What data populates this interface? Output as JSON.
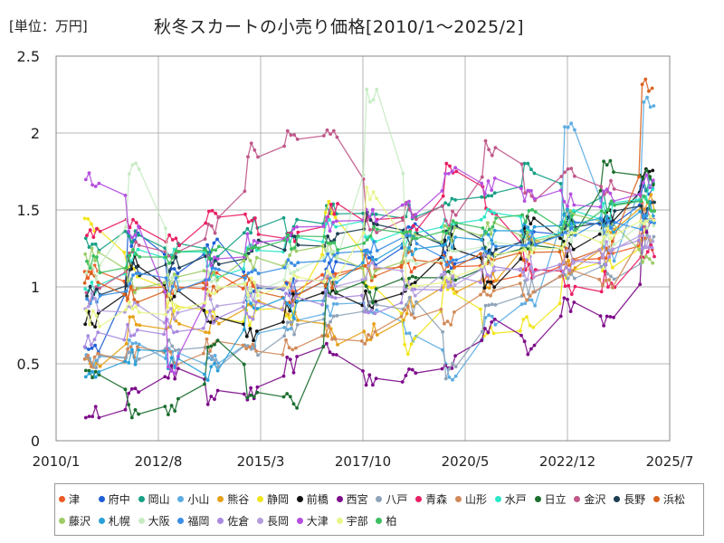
{
  "header": {
    "unit": "[単位：万円]",
    "title": "秋冬スカートの小売り価格[2010/1～2025/2]"
  },
  "chart_data": {
    "type": "line",
    "title": "秋冬スカートの小売り価格[2010/1～2025/2]",
    "unit_label": "[単位：万円]",
    "x_ticks": [
      "2010/1",
      "2012/8",
      "2015/3",
      "2017/10",
      "2020/5",
      "2022/12",
      "2025/7"
    ],
    "x_range": [
      "2010/1",
      "2025/7"
    ],
    "ylim": [
      0,
      2.5
    ],
    "y_ticks": [
      "0",
      "0.5",
      "1",
      "1.5",
      "2",
      "2.5"
    ],
    "grid": true,
    "legend_position": "bottom",
    "seasons": [
      2010,
      2011,
      2012,
      2013,
      2014,
      2015,
      2016,
      2017,
      2018,
      2019,
      2020,
      2021,
      2022,
      2023,
      2024
    ],
    "series": [
      {
        "name": "津",
        "color": "#ee5a24",
        "values": [
          1.08,
          0.95,
          0.99,
          1.05,
          1.02,
          0.98,
          1.1,
          1.15,
          1.12,
          1.18,
          1.05,
          1.12,
          1.2,
          1.22,
          1.3
        ]
      },
      {
        "name": "府中",
        "color": "#1f5fd6",
        "values": [
          0.6,
          1.3,
          1.1,
          1.25,
          0.95,
          1.0,
          1.12,
          1.2,
          1.35,
          1.18,
          1.2,
          1.35,
          1.4,
          1.45,
          1.6
        ]
      },
      {
        "name": "岡山",
        "color": "#16a085",
        "values": [
          1.28,
          1.35,
          1.25,
          1.2,
          1.4,
          1.38,
          1.5,
          1.45,
          1.5,
          1.55,
          1.6,
          1.75,
          1.5,
          1.55,
          1.65
        ]
      },
      {
        "name": "小山",
        "color": "#5dade2",
        "values": [
          0.5,
          0.62,
          0.55,
          0.5,
          0.65,
          0.75,
          0.85,
          0.88,
          0.7,
          0.45,
          0.8,
          0.9,
          2.03,
          1.2,
          2.18
        ]
      },
      {
        "name": "熊谷",
        "color": "#e6a117",
        "values": [
          0.48,
          0.78,
          0.78,
          0.75,
          0.85,
          0.8,
          0.68,
          0.7,
          0.88,
          1.0,
          1.05,
          1.35,
          1.15,
          1.4,
          1.55
        ]
      },
      {
        "name": "静岡",
        "color": "#f1e51c",
        "values": [
          1.42,
          1.1,
          0.9,
          0.85,
          0.8,
          0.85,
          1.5,
          1.0,
          0.62,
          1.0,
          0.7,
          0.75,
          1.05,
          1.15,
          1.35
        ]
      },
      {
        "name": "前橋",
        "color": "#111111",
        "values": [
          0.8,
          1.15,
          0.95,
          0.75,
          0.7,
          0.9,
          0.95,
          0.92,
          1.02,
          1.3,
          1.05,
          1.4,
          1.25,
          1.45,
          1.75
        ]
      },
      {
        "name": "西宮",
        "color": "#7d0c8a",
        "values": [
          0.18,
          0.3,
          0.45,
          0.28,
          0.3,
          0.5,
          0.6,
          0.38,
          0.45,
          0.5,
          0.75,
          0.62,
          0.88,
          0.75,
          1.4
        ]
      },
      {
        "name": "八戸",
        "color": "#8fa3b8",
        "values": [
          0.5,
          0.55,
          0.6,
          0.52,
          0.6,
          0.72,
          0.8,
          0.9,
          0.88,
          0.45,
          0.9,
          1.0,
          1.05,
          1.1,
          1.3
        ]
      },
      {
        "name": "青森",
        "color": "#e91e63",
        "values": [
          1.35,
          1.42,
          1.28,
          1.45,
          1.4,
          1.35,
          1.5,
          1.45,
          1.4,
          1.78,
          1.5,
          1.1,
          1.0,
          1.05,
          1.25
        ]
      },
      {
        "name": "山形",
        "color": "#d08a5a",
        "values": [
          0.52,
          0.6,
          0.55,
          0.62,
          0.58,
          0.65,
          0.72,
          0.68,
          0.85,
          0.8,
          1.0,
          0.95,
          1.1,
          1.05,
          1.5
        ]
      },
      {
        "name": "水戸",
        "color": "#2ee6c8",
        "values": [
          1.0,
          1.2,
          1.25,
          1.1,
          1.22,
          1.3,
          1.4,
          1.35,
          1.3,
          1.45,
          1.5,
          1.35,
          1.45,
          1.5,
          1.6
        ]
      },
      {
        "name": "日立",
        "color": "#1b6e2e",
        "values": [
          0.4,
          0.2,
          0.22,
          0.6,
          0.3,
          0.25,
          1.0,
          0.95,
          1.05,
          1.1,
          1.2,
          1.25,
          1.35,
          1.8,
          1.72
        ]
      },
      {
        "name": "金沢",
        "color": "#c0588a",
        "values": [
          0.95,
          1.25,
          1.2,
          1.4,
          1.88,
          1.98,
          1.98,
          1.4,
          1.5,
          1.45,
          1.9,
          1.6,
          1.75,
          1.65,
          1.45
        ]
      },
      {
        "name": "長野",
        "color": "#1c3d52",
        "values": [
          1.0,
          1.1,
          1.15,
          1.18,
          1.25,
          1.28,
          1.3,
          1.45,
          1.3,
          1.35,
          1.25,
          1.3,
          1.4,
          1.45,
          1.5
        ]
      },
      {
        "name": "浜松",
        "color": "#d9631f",
        "values": [
          1.05,
          0.95,
          0.98,
          1.0,
          1.02,
          0.95,
          1.05,
          1.1,
          1.2,
          1.15,
          1.18,
          1.22,
          1.2,
          1.25,
          2.3
        ]
      },
      {
        "name": "藤沢",
        "color": "#9ccc65",
        "values": [
          1.2,
          1.0,
          1.05,
          1.1,
          1.15,
          1.2,
          1.25,
          1.1,
          1.3,
          1.35,
          1.4,
          1.3,
          1.45,
          1.4,
          1.2
        ]
      },
      {
        "name": "札幌",
        "color": "#29a0d8",
        "values": [
          0.45,
          0.55,
          0.5,
          0.45,
          0.9,
          0.85,
          1.0,
          1.2,
          1.25,
          1.3,
          1.35,
          1.4,
          1.45,
          1.4,
          1.5
        ]
      },
      {
        "name": "大阪",
        "color": "#c7ecc2",
        "values": [
          1.1,
          1.78,
          1.0,
          1.05,
          0.95,
          1.1,
          1.2,
          2.26,
          1.15,
          1.2,
          1.25,
          1.3,
          1.35,
          1.3,
          1.4
        ]
      },
      {
        "name": "福岡",
        "color": "#3a8ee6",
        "values": [
          0.95,
          1.05,
          1.0,
          1.1,
          1.05,
          1.15,
          1.2,
          1.25,
          1.3,
          1.2,
          1.25,
          1.3,
          1.35,
          1.4,
          1.45
        ]
      },
      {
        "name": "佐倉",
        "color": "#a989e0",
        "values": [
          0.65,
          0.7,
          0.75,
          0.8,
          0.85,
          0.9,
          0.95,
          0.88,
          1.0,
          1.05,
          1.1,
          1.15,
          1.12,
          1.2,
          1.3
        ]
      },
      {
        "name": "長岡",
        "color": "#b39ddb",
        "values": [
          0.9,
          0.85,
          0.8,
          0.9,
          0.95,
          1.0,
          1.05,
          1.1,
          1.0,
          1.05,
          1.15,
          1.1,
          1.2,
          1.25,
          1.3
        ]
      },
      {
        "name": "大津",
        "color": "#b44fe0",
        "values": [
          1.7,
          1.38,
          0.5,
          1.2,
          1.3,
          1.35,
          1.4,
          1.45,
          1.5,
          1.75,
          1.65,
          1.6,
          1.55,
          1.6,
          1.7
        ]
      },
      {
        "name": "宇部",
        "color": "#e8f58a",
        "values": [
          0.8,
          0.85,
          0.9,
          0.95,
          1.0,
          1.05,
          1.1,
          1.6,
          1.0,
          1.1,
          1.2,
          1.25,
          1.3,
          1.35,
          1.4
        ]
      },
      {
        "name": "柏",
        "color": "#3cc060",
        "values": [
          1.15,
          1.2,
          1.18,
          1.22,
          1.25,
          1.3,
          1.28,
          1.35,
          1.32,
          1.38,
          1.4,
          1.45,
          1.42,
          1.5,
          1.55
        ]
      }
    ]
  }
}
